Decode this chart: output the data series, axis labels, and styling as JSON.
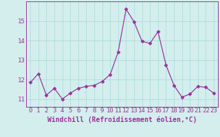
{
  "x": [
    0,
    1,
    2,
    3,
    4,
    5,
    6,
    7,
    8,
    9,
    10,
    11,
    12,
    13,
    14,
    15,
    16,
    17,
    18,
    19,
    20,
    21,
    22,
    23
  ],
  "y": [
    11.85,
    12.3,
    11.2,
    11.55,
    11.0,
    11.3,
    11.55,
    11.65,
    11.7,
    11.9,
    12.25,
    13.4,
    15.6,
    14.95,
    13.95,
    13.85,
    14.45,
    12.75,
    11.7,
    11.1,
    11.25,
    11.65,
    11.6,
    11.3
  ],
  "line_color": "#993399",
  "marker": "D",
  "marker_size": 2.5,
  "bg_color": "#d4eeee",
  "grid_color": "#aadddd",
  "xlabel": "Windchill (Refroidissement éolien,°C)",
  "xlabel_fontsize": 7,
  "tick_fontsize": 6.5,
  "ylim": [
    10.6,
    16.0
  ],
  "yticks": [
    11,
    12,
    13,
    14,
    15
  ],
  "xticks": [
    0,
    1,
    2,
    3,
    4,
    5,
    6,
    7,
    8,
    9,
    10,
    11,
    12,
    13,
    14,
    15,
    16,
    17,
    18,
    19,
    20,
    21,
    22,
    23
  ]
}
